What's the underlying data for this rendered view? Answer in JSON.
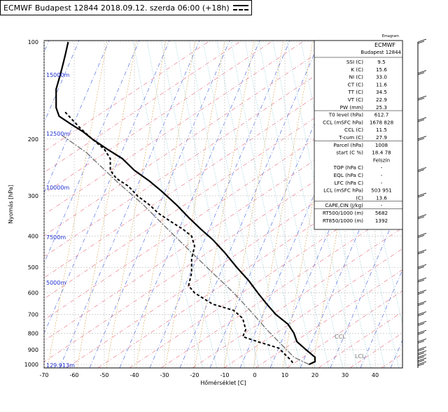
{
  "header": {
    "title": "ECMWF Budapest 12844 2018.09.12. szerda 06:00 (+18h)"
  },
  "table": {
    "corner_label": "Emagram",
    "model": "ECMWF",
    "station": "Budapest 12844",
    "rows": [
      [
        "SSI (C)",
        "9.5"
      ],
      [
        "K (C)",
        "15.6"
      ],
      [
        "NI (C)",
        "33.0"
      ],
      [
        "CT (C)",
        "11.6"
      ],
      [
        "TT (C)",
        "34.5"
      ],
      [
        "VT (C)",
        "22.9"
      ],
      [
        "PW (mm)",
        "25.3"
      ],
      [
        "T0 level (hPa)",
        "612.7"
      ],
      [
        "CCL (mSFC hPa)",
        "1678  828"
      ],
      [
        "CCL (C)",
        "11.5"
      ],
      [
        "T-cum (C)",
        "27.9"
      ],
      [
        "Parcel  (hPa)",
        "1008"
      ],
      [
        "start (C  %)",
        "18.4  78"
      ],
      [
        "",
        "Felszín"
      ],
      [
        "TOP (hPa  C)",
        "-"
      ],
      [
        "EQL (hPa  C)",
        "-"
      ],
      [
        "LFC (hPa  C)",
        "-"
      ],
      [
        "LCL (mSFC hPa)",
        "503  951"
      ],
      [
        "(C)",
        "13.6"
      ],
      [
        "CAPE,CIN (J/kg)",
        "-"
      ],
      [
        "RT500/1000 (m)",
        "5682"
      ],
      [
        "RT850/1000 (m)",
        "1392"
      ]
    ]
  },
  "chart_data": {
    "type": "line",
    "title": "ECMWF Budapest 12844 2018.09.12. szerda 06:00 (+18h)",
    "xlabel": "Hőmérséklet [C]",
    "ylabel": "Nyomás [hPa]",
    "xlim": [
      -70,
      45
    ],
    "ylim": [
      1000,
      100
    ],
    "x_ticks": [
      "-70",
      "-60",
      "-50",
      "-40",
      "-30",
      "-20",
      "-10",
      "0",
      "10",
      "20",
      "30",
      "40"
    ],
    "y_ticks": [
      "100",
      "200",
      "300",
      "400",
      "500",
      "600",
      "700",
      "800",
      "900",
      "1000"
    ],
    "height_labels": [
      "15000m",
      "12500m",
      "10000m",
      "7500m",
      "5000m",
      "129.913m"
    ],
    "curve_labels": [
      "CCL",
      "LCL"
    ],
    "grid": true,
    "series": [
      {
        "name": "temperature",
        "style": "solid",
        "points": [
          [
            -62,
            100
          ],
          [
            -63,
            110
          ],
          [
            -64,
            120
          ],
          [
            -65,
            130
          ],
          [
            -66,
            140
          ],
          [
            -66,
            150
          ],
          [
            -66,
            160
          ],
          [
            -65,
            170
          ],
          [
            -61,
            180
          ],
          [
            -57,
            190
          ],
          [
            -54,
            200
          ],
          [
            -49,
            215
          ],
          [
            -44,
            230
          ],
          [
            -40,
            250
          ],
          [
            -35,
            270
          ],
          [
            -31,
            290
          ],
          [
            -26,
            320
          ],
          [
            -22,
            350
          ],
          [
            -18,
            380
          ],
          [
            -14,
            410
          ],
          [
            -10,
            450
          ],
          [
            -6,
            500
          ],
          [
            -2,
            550
          ],
          [
            1,
            600
          ],
          [
            4,
            650
          ],
          [
            7,
            700
          ],
          [
            11,
            750
          ],
          [
            13,
            800
          ],
          [
            14,
            850
          ],
          [
            17,
            900
          ],
          [
            20,
            950
          ],
          [
            20,
            980
          ],
          [
            18,
            1000
          ]
        ]
      },
      {
        "name": "dewpoint",
        "style": "dashed",
        "points": [
          [
            -63,
            165
          ],
          [
            -58,
            185
          ],
          [
            -54,
            200
          ],
          [
            -50,
            215
          ],
          [
            -48,
            230
          ],
          [
            -48,
            250
          ],
          [
            -46,
            265
          ],
          [
            -42,
            280
          ],
          [
            -39,
            300
          ],
          [
            -35,
            320
          ],
          [
            -32,
            340
          ],
          [
            -28,
            360
          ],
          [
            -24,
            380
          ],
          [
            -21,
            400
          ],
          [
            -20,
            430
          ],
          [
            -21,
            470
          ],
          [
            -21,
            520
          ],
          [
            -22,
            570
          ],
          [
            -20,
            600
          ],
          [
            -14,
            650
          ],
          [
            -7,
            680
          ],
          [
            -4,
            720
          ],
          [
            -3,
            780
          ],
          [
            -4,
            820
          ],
          [
            1,
            850
          ],
          [
            8,
            890
          ],
          [
            10,
            930
          ],
          [
            12,
            970
          ],
          [
            13,
            1000
          ]
        ]
      },
      {
        "name": "parcel",
        "style": "grey",
        "points": [
          [
            18,
            1000
          ],
          [
            13,
            950
          ],
          [
            9,
            870
          ],
          [
            4,
            780
          ],
          [
            -1,
            690
          ],
          [
            -7,
            600
          ],
          [
            -14,
            520
          ],
          [
            -21,
            450
          ],
          [
            -29,
            380
          ],
          [
            -37,
            320
          ],
          [
            -46,
            270
          ],
          [
            -56,
            220
          ],
          [
            -64,
            195
          ]
        ]
      }
    ]
  },
  "wind_barbs": [
    "100",
    "125",
    "150",
    "175",
    "200",
    "250",
    "300",
    "350",
    "400",
    "450",
    "500",
    "550",
    "600",
    "650",
    "700",
    "750",
    "800",
    "850",
    "900",
    "925",
    "950",
    "975",
    "1000"
  ]
}
